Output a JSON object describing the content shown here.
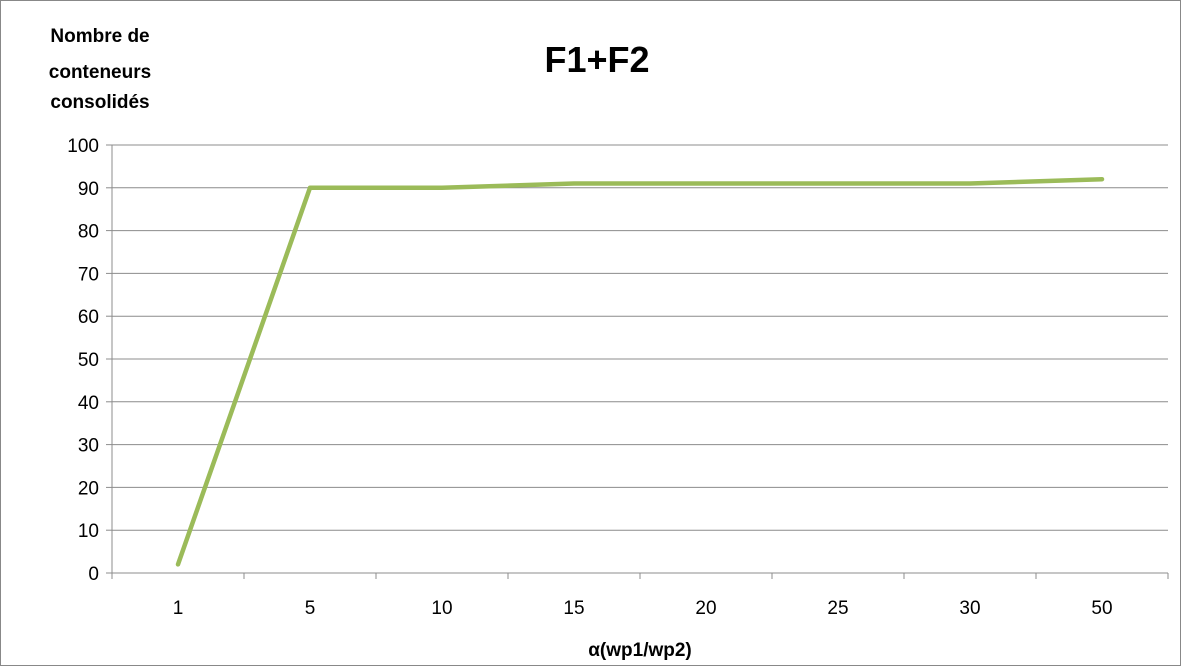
{
  "chart_data": {
    "type": "line",
    "title": "F1+F2",
    "ylabel_lines": [
      "Nombre de",
      "conteneurs",
      "consolidés"
    ],
    "xlabel": "α(wp1/wp2)",
    "categories": [
      "1",
      "5",
      "10",
      "15",
      "20",
      "25",
      "30",
      "50"
    ],
    "series": [
      {
        "values": [
          2,
          90,
          90,
          91,
          91,
          91,
          91,
          92
        ],
        "color": "#9bbb59"
      }
    ],
    "ylim": [
      0,
      100
    ],
    "yticks": [
      0,
      10,
      20,
      30,
      40,
      50,
      60,
      70,
      80,
      90,
      100
    ],
    "ytick_labels": [
      "0",
      "10",
      "20",
      "30",
      "40",
      "50",
      "60",
      "70",
      "80",
      "90",
      "100"
    ],
    "grid": "horizontal",
    "legend": "none"
  }
}
